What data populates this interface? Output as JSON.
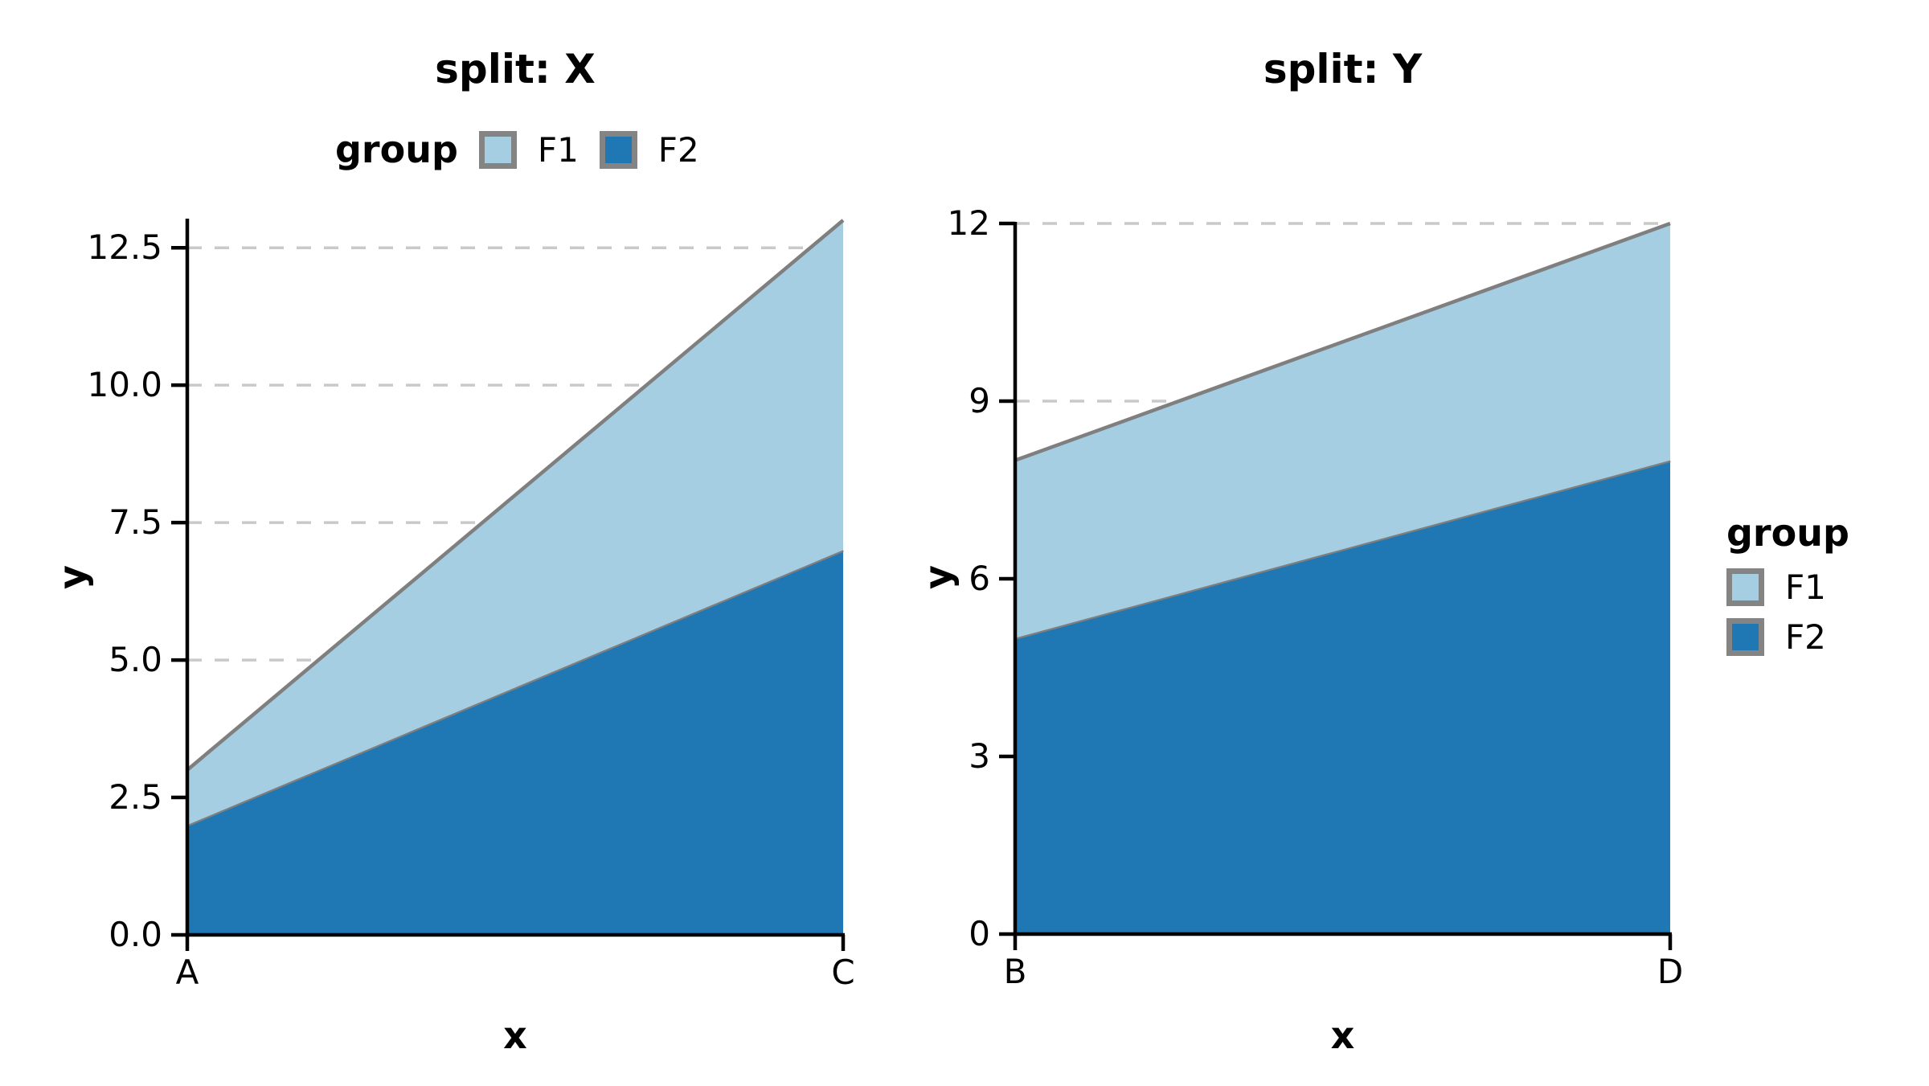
{
  "chart_data": [
    {
      "type": "area",
      "stacked": true,
      "stack_order": "bottom-to-top",
      "title": "split: X",
      "xlabel": "x",
      "ylabel": "y",
      "x_categories": [
        "A",
        "C"
      ],
      "series": [
        {
          "name": "F2",
          "values": [
            2,
            7
          ],
          "color": "#1f78b4"
        },
        {
          "name": "F1",
          "values": [
            1,
            6
          ],
          "color": "#a6cee3"
        }
      ],
      "totals": [
        3,
        13
      ],
      "yticks": [
        0.0,
        2.5,
        5.0,
        7.5,
        10.0,
        12.5
      ],
      "ytick_labels": [
        "0.0",
        "2.5",
        "5.0",
        "7.5",
        "10.0",
        "12.5"
      ],
      "ylim": [
        0,
        13
      ],
      "grid": "horizontal-dashed"
    },
    {
      "type": "area",
      "stacked": true,
      "stack_order": "bottom-to-top",
      "title": "split: Y",
      "xlabel": "x",
      "ylabel": "y",
      "x_categories": [
        "B",
        "D"
      ],
      "series": [
        {
          "name": "F2",
          "values": [
            5,
            8
          ],
          "color": "#1f78b4"
        },
        {
          "name": "F1",
          "values": [
            3,
            4
          ],
          "color": "#a6cee3"
        }
      ],
      "totals": [
        8,
        12
      ],
      "yticks": [
        0,
        3,
        6,
        9,
        12
      ],
      "ytick_labels": [
        "0",
        "3",
        "6",
        "9",
        "12"
      ],
      "ylim": [
        0,
        12
      ],
      "grid": "horizontal-dashed"
    }
  ],
  "legend_top": {
    "title": "group",
    "items": [
      {
        "label": "F1",
        "color": "#a6cee3"
      },
      {
        "label": "F2",
        "color": "#1f78b4"
      }
    ]
  },
  "legend_right": {
    "title": "group",
    "items": [
      {
        "label": "F1",
        "color": "#a6cee3"
      },
      {
        "label": "F2",
        "color": "#1f78b4"
      }
    ]
  },
  "colors": {
    "f1": "#a6cee3",
    "f2": "#1f78b4",
    "area_edge": "#7f7f7f",
    "grid": "#c9c9c9",
    "axis": "#000000",
    "background": "#ffffff"
  }
}
